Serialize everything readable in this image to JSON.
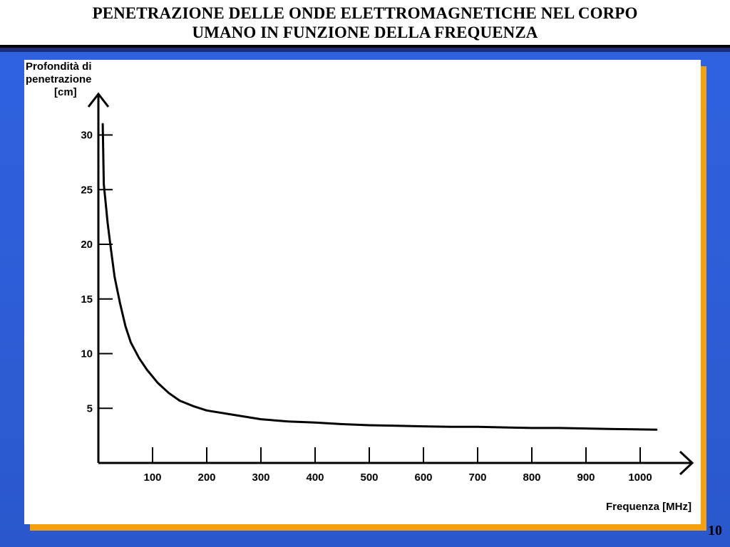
{
  "slide": {
    "title_line1": "PENETRAZIONE DELLE ONDE ELETTROMAGNETICHE NEL CORPO",
    "title_line2": "UMANO IN FUNZIONE DELLA FREQUENZA",
    "page_number": "10"
  },
  "colors": {
    "background": "#2d5cd6",
    "panel_shadow": "#f5a00f",
    "panel": "#ffffff",
    "curve": "#000000"
  },
  "chart_data": {
    "type": "line",
    "title": "",
    "ylabel_lines": [
      "Profondità di",
      "penetrazione",
      "[cm]"
    ],
    "xlabel": "Frequenza [MHz]",
    "xlim": [
      0,
      1050
    ],
    "ylim": [
      0,
      33
    ],
    "x_ticks": [
      100,
      200,
      300,
      400,
      500,
      600,
      700,
      800,
      900,
      1000
    ],
    "y_ticks": [
      5,
      10,
      15,
      20,
      25,
      30
    ],
    "grid": false,
    "series": [
      {
        "x": [
          8,
          10,
          13,
          17,
          22,
          30,
          40,
          50,
          60,
          75,
          90,
          110,
          130,
          150,
          175,
          200,
          250,
          300,
          350,
          400,
          450,
          500,
          550,
          600,
          650,
          700,
          750,
          800,
          850,
          900,
          950,
          1030
        ],
        "y": [
          31,
          25.5,
          24,
          22,
          20,
          17,
          14.6,
          12.5,
          11,
          9.6,
          8.5,
          7.3,
          6.4,
          5.7,
          5.2,
          4.8,
          4.4,
          4.0,
          3.8,
          3.7,
          3.55,
          3.45,
          3.4,
          3.35,
          3.3,
          3.3,
          3.25,
          3.2,
          3.2,
          3.15,
          3.1,
          3.05
        ]
      }
    ]
  }
}
